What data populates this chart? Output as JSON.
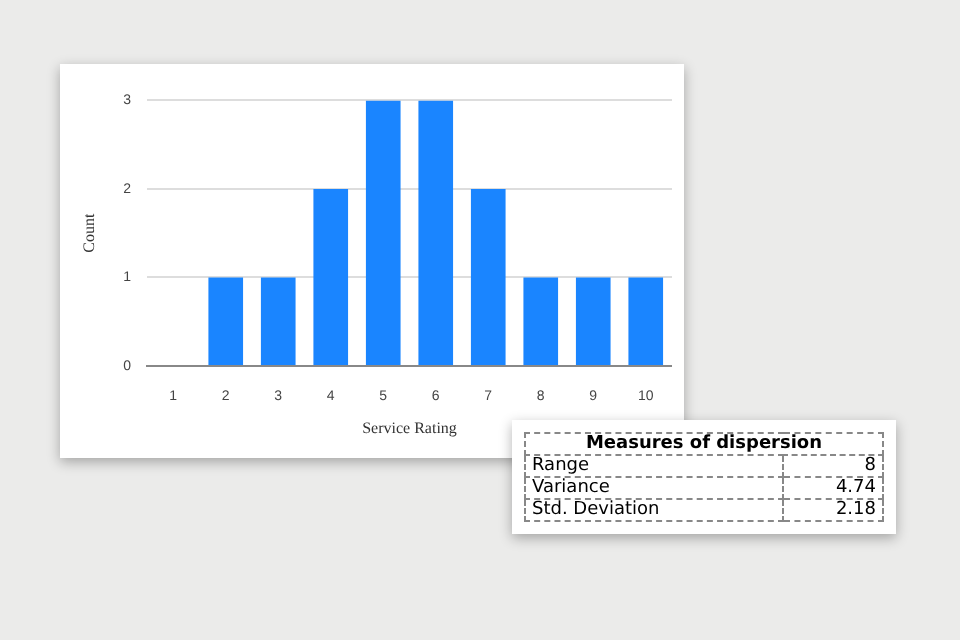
{
  "chart_data": [
    {
      "type": "bar",
      "xlabel": "Service Rating",
      "ylabel": "Count",
      "categories": [
        "1",
        "2",
        "3",
        "4",
        "5",
        "6",
        "7",
        "8",
        "9",
        "10"
      ],
      "values": [
        0,
        1,
        1,
        2,
        3,
        3,
        2,
        1,
        1,
        1
      ],
      "color": "#1a85ff",
      "ylim": [
        0,
        3
      ],
      "yticks": [
        0,
        1,
        2,
        3
      ],
      "grid": "y",
      "legend": false
    },
    {
      "type": "other",
      "title": "Measures of dispersion",
      "annotations": [
        "Range",
        "8",
        "Variance",
        "4.74",
        "Std. Deviation",
        "2.18"
      ]
    }
  ]
}
